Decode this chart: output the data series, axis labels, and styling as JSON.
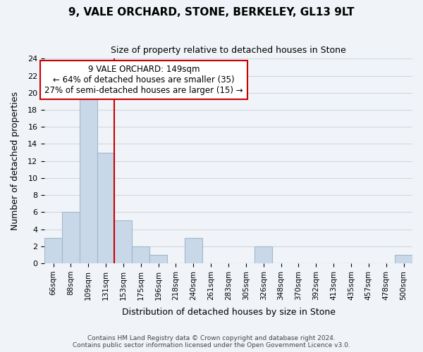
{
  "title": "9, VALE ORCHARD, STONE, BERKELEY, GL13 9LT",
  "subtitle": "Size of property relative to detached houses in Stone",
  "xlabel": "Distribution of detached houses by size in Stone",
  "ylabel": "Number of detached properties",
  "footer_line1": "Contains HM Land Registry data © Crown copyright and database right 2024.",
  "footer_line2": "Contains public sector information licensed under the Open Government Licence v3.0.",
  "bin_labels": [
    "66sqm",
    "88sqm",
    "109sqm",
    "131sqm",
    "153sqm",
    "175sqm",
    "196sqm",
    "218sqm",
    "240sqm",
    "261sqm",
    "283sqm",
    "305sqm",
    "326sqm",
    "348sqm",
    "370sqm",
    "392sqm",
    "413sqm",
    "435sqm",
    "457sqm",
    "478sqm",
    "500sqm"
  ],
  "bin_values": [
    3,
    6,
    20,
    13,
    5,
    2,
    1,
    0,
    3,
    0,
    0,
    0,
    2,
    0,
    0,
    0,
    0,
    0,
    0,
    0,
    1
  ],
  "bar_color": "#c8d8e8",
  "bar_edge_color": "#a0b8cc",
  "ylim": [
    0,
    24
  ],
  "yticks": [
    0,
    2,
    4,
    6,
    8,
    10,
    12,
    14,
    16,
    18,
    20,
    22,
    24
  ],
  "property_line_x": 3.5,
  "annotation_title": "9 VALE ORCHARD: 149sqm",
  "annotation_line1": "← 64% of detached houses are smaller (35)",
  "annotation_line2": "27% of semi-detached houses are larger (15) →",
  "annotation_box_color": "#ffffff",
  "annotation_box_edge": "#cc0000",
  "red_line_color": "#cc0000",
  "grid_color": "#d0d8e0",
  "background_color": "#f0f4f8"
}
